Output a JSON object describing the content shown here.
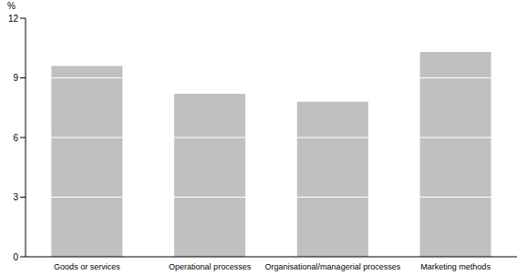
{
  "chart_data": {
    "type": "bar",
    "y_label": "%",
    "categories": [
      "Goods or services",
      "Operational processes",
      "Organisational/managerial processes",
      "Marketing methods"
    ],
    "values": [
      9.6,
      8.2,
      7.8,
      10.3
    ],
    "color": "#c0c0c0",
    "ylim": [
      0,
      12
    ],
    "yticks": [
      0,
      3,
      6,
      9,
      12
    ],
    "grid": true
  }
}
